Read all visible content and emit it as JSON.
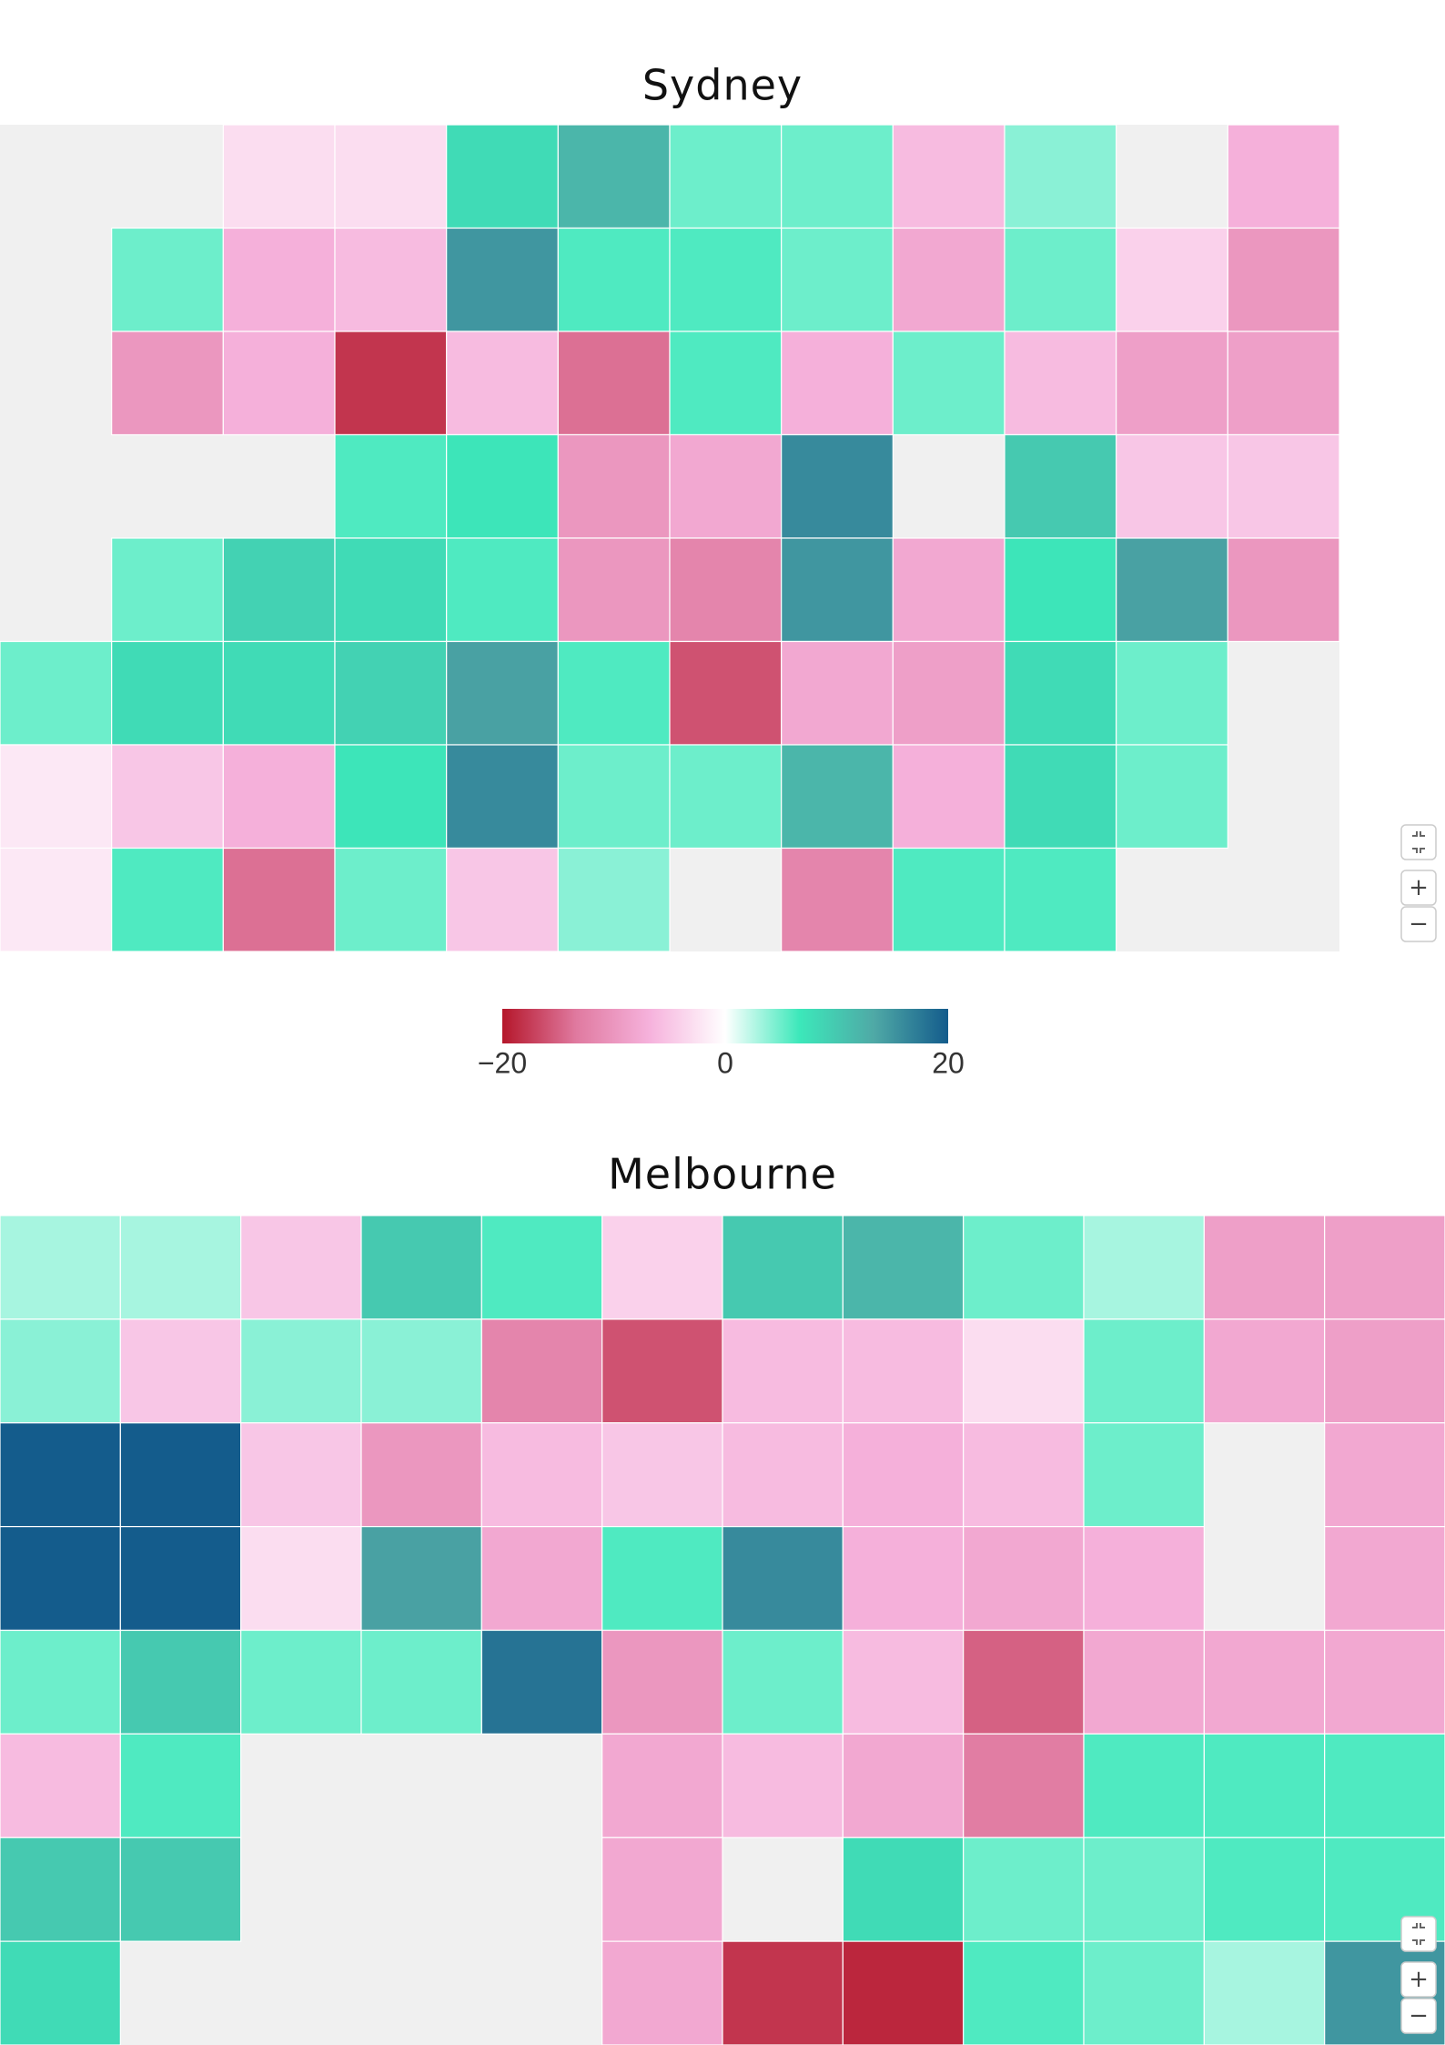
{
  "maps": [
    {
      "title": "Sydney",
      "rows": [
        [
          null,
          null,
          -3,
          -3,
          8,
          12,
          5,
          5,
          -6,
          4,
          null,
          -7
        ],
        [
          null,
          5,
          -7,
          -6,
          15,
          6,
          6,
          5,
          -8,
          5,
          -4,
          -10
        ],
        [
          null,
          -10,
          -7,
          -18,
          -6,
          -14,
          6,
          -7,
          5,
          -6,
          -9,
          -9
        ],
        [
          null,
          null,
          null,
          6,
          7,
          -10,
          -8,
          16,
          null,
          10,
          -5,
          -5
        ],
        [
          null,
          5,
          9,
          8,
          6,
          -10,
          -12,
          15,
          -8,
          7,
          14,
          -10
        ],
        [
          5,
          8,
          8,
          9,
          14,
          6,
          -16,
          -8,
          -9,
          8,
          5,
          null
        ],
        [
          -2,
          -5,
          -7,
          7,
          16,
          5,
          5,
          12,
          -7,
          8,
          5,
          null
        ],
        [
          -2,
          6,
          -14,
          5,
          -5,
          4,
          null,
          -12,
          6,
          6,
          null,
          null
        ]
      ]
    },
    {
      "title": "Melbourne",
      "rows": [
        [
          3,
          3,
          -5,
          10,
          6,
          -4,
          10,
          12,
          5,
          3,
          -9,
          -9
        ],
        [
          4,
          -5,
          4,
          4,
          -12,
          -16,
          -6,
          -6,
          -3,
          5,
          -8,
          -9
        ],
        [
          20,
          20,
          -5,
          -10,
          -6,
          -5,
          -6,
          -7,
          -6,
          5,
          null,
          -8
        ],
        [
          20,
          20,
          -3,
          14,
          -8,
          6,
          16,
          -7,
          -8,
          -7,
          null,
          -8
        ],
        [
          5,
          10,
          5,
          5,
          18,
          -10,
          5,
          -6,
          -15,
          -8,
          -8,
          -8
        ],
        [
          -6,
          6,
          null,
          null,
          null,
          -8,
          -6,
          -8,
          -13,
          6,
          6,
          6
        ],
        [
          10,
          10,
          null,
          null,
          null,
          -8,
          null,
          8,
          5,
          5,
          6,
          6
        ],
        [
          8,
          null,
          null,
          null,
          null,
          -8,
          -18,
          -19,
          6,
          5,
          3,
          15
        ]
      ]
    }
  ],
  "legend": {
    "ticks": [
      {
        "value": -20,
        "label": "−20"
      },
      0,
      20
    ],
    "colors": [
      "#b5172b",
      "#e07aa0",
      "#f6b3dd",
      "#ffffff",
      "#3ce8ba",
      "#4fa9a6",
      "#145c8c"
    ]
  },
  "controls": {
    "zoom_in": "+",
    "zoom_out": "−"
  }
}
